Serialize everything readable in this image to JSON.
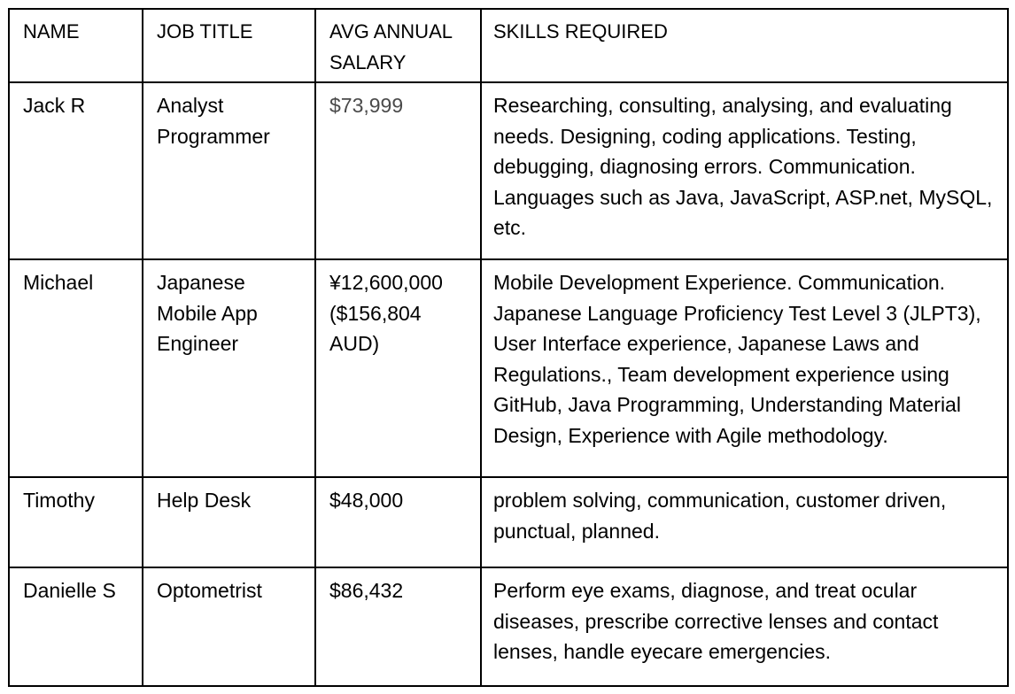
{
  "table": {
    "headers": {
      "name": "NAME",
      "job_title": "JOB TITLE",
      "salary": "AVG ANNUAL SALARY",
      "skills": "SKILLS REQUIRED"
    },
    "rows": [
      {
        "name": "Jack R",
        "job_title": "Analyst Programmer",
        "salary": "$73,999",
        "skills": "Researching, consulting, analysing, and evaluating needs. Designing, coding applications. Testing, debugging, diagnosing errors. Communication. Languages such as Java, JavaScript, ASP.net, MySQL, etc."
      },
      {
        "name": "Michael",
        "job_title": "Japanese Mobile App Engineer",
        "salary": "¥12,600,000 ($156,804 AUD)",
        "skills": "Mobile Development Experience. Communication. Japanese Language Proficiency Test Level 3 (JLPT3), User Interface experience, Japanese Laws and Regulations., Team development experience using GitHub, Java Programming, Understanding Material Design, Experience with Agile methodology."
      },
      {
        "name": "Timothy",
        "job_title": "Help Desk",
        "salary": "$48,000",
        "skills": "problem solving, communication, customer driven, punctual, planned."
      },
      {
        "name": "Danielle S",
        "job_title": "Optometrist",
        "salary": "$86,432",
        "skills": "Perform eye exams, diagnose, and treat ocular diseases, prescribe corrective lenses and contact lenses, handle eyecare emergencies."
      }
    ]
  }
}
